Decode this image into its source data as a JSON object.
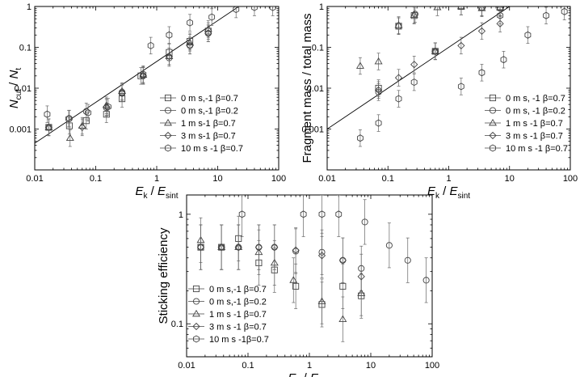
{
  "chart_data": [
    {
      "type": "scatter",
      "id": "p1",
      "xscale": "log",
      "yscale": "log",
      "xlim": [
        0.01,
        100
      ],
      "ylim": [
        0.0001,
        1
      ],
      "xticks": [
        0.01,
        0.1,
        1,
        10,
        100
      ],
      "xtick_labels": [
        "0.01",
        "0.1",
        "1",
        "10",
        "100"
      ],
      "yticks": [
        0.001,
        0.01,
        0.1,
        1
      ],
      "ytick_labels": [
        "0.001",
        "0.01",
        "0.1",
        "1"
      ],
      "xlabel": {
        "a": "E",
        "a_sub": "k",
        "sep": " / ",
        "b": "E",
        "b_sub": "sint"
      },
      "ylabel": {
        "a": "N",
        "a_sub": "cut",
        "sep": " / ",
        "b": "N",
        "b_sub": "t"
      },
      "legend_position": "bottom-right",
      "fit_line": {
        "x": [
          0.01,
          10
        ],
        "y": [
          0.00045,
          0.45
        ]
      },
      "series": [
        {
          "name": "0 m s,-1  β=0.7",
          "marker": "square",
          "points": [
            [
              0.017,
              0.0011
            ],
            [
              0.037,
              0.0012
            ],
            [
              0.07,
              0.0016
            ],
            [
              0.15,
              0.0023
            ],
            [
              0.27,
              0.0055
            ],
            [
              0.55,
              0.02
            ],
            [
              1.6,
              0.075
            ],
            [
              3.5,
              0.14
            ],
            [
              7,
              0.25
            ]
          ]
        },
        {
          "name": "0 m s,-1  β=0.2",
          "marker": "circle",
          "points": [
            [
              0.017,
              0.0011
            ],
            [
              0.037,
              0.0018
            ],
            [
              0.07,
              0.0027
            ],
            [
              0.15,
              0.0033
            ],
            [
              0.27,
              0.008
            ],
            [
              0.6,
              0.02
            ],
            [
              1.6,
              0.055
            ],
            [
              3.5,
              0.11
            ],
            [
              7,
              0.22
            ]
          ]
        },
        {
          "name": "1 m s-1  β=0.7",
          "marker": "triangle",
          "points": [
            [
              0.017,
              0.0011
            ],
            [
              0.038,
              0.0006
            ],
            [
              0.06,
              0.0012
            ],
            [
              0.15,
              0.0038
            ],
            [
              0.27,
              0.0085
            ],
            [
              0.6,
              0.021
            ],
            [
              1.6,
              0.06
            ],
            [
              3.5,
              0.13
            ],
            [
              7,
              0.28
            ]
          ]
        },
        {
          "name": "3 m s-1  β=0.7",
          "marker": "diamond",
          "points": [
            [
              0.017,
              0.0011
            ],
            [
              0.06,
              0.0011
            ],
            [
              0.15,
              0.0035
            ],
            [
              0.27,
              0.0075
            ],
            [
              0.6,
              0.02
            ],
            [
              1.6,
              0.06
            ],
            [
              3.5,
              0.11
            ],
            [
              7,
              0.22
            ]
          ]
        },
        {
          "name": "10 m s -1  β=0.7",
          "marker": "hexagon",
          "points": [
            [
              0.016,
              0.0023
            ],
            [
              0.036,
              0.0018
            ],
            [
              0.075,
              0.0025
            ],
            [
              0.16,
              0.0035
            ],
            [
              0.27,
              0.0075
            ],
            [
              0.6,
              0.022
            ],
            [
              0.8,
              0.11
            ],
            [
              1.6,
              0.2
            ],
            [
              3.5,
              0.4
            ],
            [
              8,
              0.55
            ],
            [
              20,
              0.85
            ],
            [
              40,
              0.95
            ],
            [
              80,
              0.95
            ]
          ]
        }
      ]
    },
    {
      "type": "scatter",
      "id": "p2",
      "xscale": "log",
      "yscale": "log",
      "xlim": [
        0.01,
        100
      ],
      "ylim": [
        0.0001,
        1
      ],
      "xticks": [
        0.01,
        0.1,
        1,
        10,
        100
      ],
      "xtick_labels": [
        "0.01",
        "0.1",
        "1",
        "10",
        "100"
      ],
      "yticks": [
        0.001,
        0.01,
        0.1,
        1
      ],
      "ytick_labels": [
        "0.001",
        "0.01",
        "0.1",
        "1"
      ],
      "xlabel": {
        "a": "E",
        "a_sub": "k",
        "sep": " / ",
        "b": "E",
        "b_sub": "sint"
      },
      "ylabel": {
        "a": "Fragment mass / total mass"
      },
      "legend_position": "bottom-right",
      "fit_line": {
        "x": [
          0.01,
          10
        ],
        "y": [
          0.001,
          1
        ]
      },
      "series": [
        {
          "name": "0 m s, -1  β=0.7",
          "marker": "square",
          "points": [
            [
              0.07,
              0.01
            ],
            [
              0.15,
              0.33
            ],
            [
              0.27,
              0.6
            ],
            [
              0.6,
              0.08
            ],
            [
              1.6,
              1.0
            ],
            [
              3.5,
              0.95
            ],
            [
              7,
              0.95
            ]
          ]
        },
        {
          "name": "0 m s, -1  β=0.2",
          "marker": "circle",
          "points": [
            [
              0.07,
              0.008
            ],
            [
              0.15,
              0.33
            ],
            [
              0.28,
              0.65
            ],
            [
              0.6,
              0.08
            ],
            [
              1.6,
              1.0
            ],
            [
              3.5,
              0.95
            ],
            [
              7,
              0.9
            ]
          ]
        },
        {
          "name": "1 m s -1  β=0.7",
          "marker": "triangle",
          "points": [
            [
              0.035,
              0.035
            ],
            [
              0.07,
              0.045
            ],
            [
              0.15,
              0.35
            ],
            [
              0.27,
              0.62
            ],
            [
              0.6,
              0.08
            ],
            [
              0.65,
              0.95
            ],
            [
              1.6,
              1.0
            ],
            [
              3.5,
              0.9
            ],
            [
              7,
              0.95
            ]
          ]
        },
        {
          "name": "3 m s -1  β=0.7",
          "marker": "diamond",
          "points": [
            [
              0.07,
              0.009
            ],
            [
              0.15,
              0.018
            ],
            [
              0.27,
              0.038
            ],
            [
              0.6,
              0.08
            ],
            [
              1.6,
              0.11
            ],
            [
              3.5,
              0.25
            ],
            [
              7,
              0.38
            ]
          ]
        },
        {
          "name": "10 m s -1  β=0.7",
          "marker": "hexagon",
          "points": [
            [
              0.035,
              0.0006
            ],
            [
              0.07,
              0.0014
            ],
            [
              0.15,
              0.0055
            ],
            [
              0.27,
              0.014
            ],
            [
              0.6,
              0.08
            ],
            [
              1.6,
              0.011
            ],
            [
              3.5,
              0.024
            ],
            [
              7,
              0.6
            ],
            [
              8,
              0.05
            ],
            [
              20,
              0.2
            ],
            [
              40,
              0.6
            ],
            [
              80,
              0.75
            ]
          ]
        }
      ]
    },
    {
      "type": "scatter",
      "id": "p3",
      "xscale": "log",
      "yscale": "log",
      "xlim": [
        0.01,
        100
      ],
      "ylim": [
        0.05,
        1.5
      ],
      "xticks": [
        0.01,
        0.1,
        1,
        10,
        100
      ],
      "xtick_labels": [
        "0.01",
        "0.1",
        "1",
        "10",
        "100"
      ],
      "yticks": [
        0.1,
        1
      ],
      "ytick_labels": [
        "0.1",
        "1"
      ],
      "xlabel": {
        "a": "E",
        "a_sub": "k",
        "sep": " / ",
        "b": "E",
        "b_sub": "sint"
      },
      "ylabel": {
        "a": "Sticking efficiency"
      },
      "legend_position": "bottom-left",
      "series": [
        {
          "name": "0 m s,-1  β=0.7",
          "marker": "square",
          "points": [
            [
              0.017,
              0.5
            ],
            [
              0.037,
              0.5
            ],
            [
              0.07,
              0.6
            ],
            [
              0.15,
              0.36
            ],
            [
              0.27,
              0.31
            ],
            [
              0.6,
              0.22
            ],
            [
              1.6,
              0.15
            ],
            [
              3.5,
              0.22
            ],
            [
              7,
              0.18
            ]
          ]
        },
        {
          "name": "0 m s,-1  β=0.2",
          "marker": "circle",
          "points": [
            [
              0.017,
              0.5
            ],
            [
              0.037,
              0.5
            ],
            [
              0.07,
              0.5
            ],
            [
              0.15,
              0.5
            ],
            [
              0.27,
              0.5
            ],
            [
              0.6,
              0.46
            ],
            [
              1.6,
              0.45
            ],
            [
              3.5,
              0.38
            ],
            [
              7,
              0.32
            ],
            [
              8,
              0.85
            ],
            [
              20,
              0.52
            ],
            [
              40,
              0.38
            ],
            [
              80,
              0.25
            ]
          ]
        },
        {
          "name": "1 m s -1  β=0.7",
          "marker": "triangle",
          "points": [
            [
              0.017,
              0.58
            ],
            [
              0.037,
              0.5
            ],
            [
              0.07,
              0.5
            ],
            [
              0.15,
              0.45
            ],
            [
              0.27,
              0.36
            ],
            [
              0.55,
              0.25
            ],
            [
              1.6,
              0.16
            ],
            [
              3.5,
              0.11
            ],
            [
              7,
              0.19
            ]
          ]
        },
        {
          "name": "3 m s -1  β=0.7",
          "marker": "diamond",
          "points": [
            [
              0.017,
              0.5
            ],
            [
              0.037,
              0.5
            ],
            [
              0.07,
              0.5
            ],
            [
              0.15,
              0.5
            ],
            [
              0.27,
              0.5
            ],
            [
              0.6,
              0.47
            ],
            [
              1.6,
              0.42
            ],
            [
              3.5,
              0.38
            ],
            [
              7,
              0.27
            ]
          ]
        },
        {
          "name": "10 m s -1β=0.7",
          "marker": "hexagon",
          "points": [
            [
              0.08,
              1.0
            ],
            [
              0.8,
              1.0
            ],
            [
              1.6,
              1.0
            ],
            [
              3.0,
              1.0
            ]
          ]
        }
      ]
    }
  ]
}
